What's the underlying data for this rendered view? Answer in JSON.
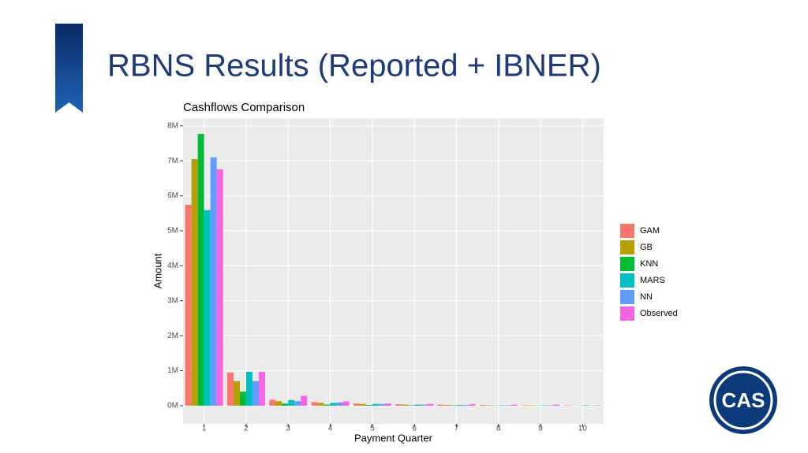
{
  "slide_title": "RBNS Results (Reported + IBNER)",
  "logo": "CAS",
  "chart_data": {
    "type": "bar",
    "title": "Cashflows Comparison",
    "x_label": "Payment Quarter",
    "y_label": "Amount",
    "categories": [
      "1",
      "2",
      "3",
      "4",
      "5",
      "6",
      "7",
      "8",
      "9",
      "10"
    ],
    "series": [
      {
        "name": "GAM",
        "color": "#F8766D",
        "values": [
          5740000,
          950000,
          170000,
          100000,
          60000,
          40000,
          30000,
          20000,
          10000,
          10000
        ]
      },
      {
        "name": "GB",
        "color": "#B79F00",
        "values": [
          7050000,
          700000,
          130000,
          80000,
          50000,
          30000,
          20000,
          10000,
          10000,
          5000
        ]
      },
      {
        "name": "KNN",
        "color": "#00BA38",
        "values": [
          7770000,
          400000,
          60000,
          30000,
          20000,
          10000,
          10000,
          5000,
          5000,
          2000
        ]
      },
      {
        "name": "MARS",
        "color": "#00BFC4",
        "values": [
          5590000,
          970000,
          160000,
          80000,
          50000,
          30000,
          20000,
          10000,
          10000,
          10000
        ]
      },
      {
        "name": "NN",
        "color": "#619CFF",
        "values": [
          7100000,
          700000,
          130000,
          90000,
          50000,
          30000,
          20000,
          10000,
          10000,
          5000
        ]
      },
      {
        "name": "Observed",
        "color": "#F564E3",
        "values": [
          6760000,
          970000,
          280000,
          120000,
          60000,
          50000,
          40000,
          30000,
          30000,
          10000
        ]
      }
    ],
    "ylim": [
      -520000,
      8220000
    ],
    "yticks": [
      {
        "value": 0,
        "label": "0M"
      },
      {
        "value": 1000000,
        "label": "1M"
      },
      {
        "value": 2000000,
        "label": "2M"
      },
      {
        "value": 3000000,
        "label": "3M"
      },
      {
        "value": 4000000,
        "label": "4M"
      },
      {
        "value": 5000000,
        "label": "5M"
      },
      {
        "value": 6000000,
        "label": "6M"
      },
      {
        "value": 7000000,
        "label": "7M"
      },
      {
        "value": 8000000,
        "label": "8M"
      }
    ],
    "grid": true,
    "legend": "right"
  }
}
